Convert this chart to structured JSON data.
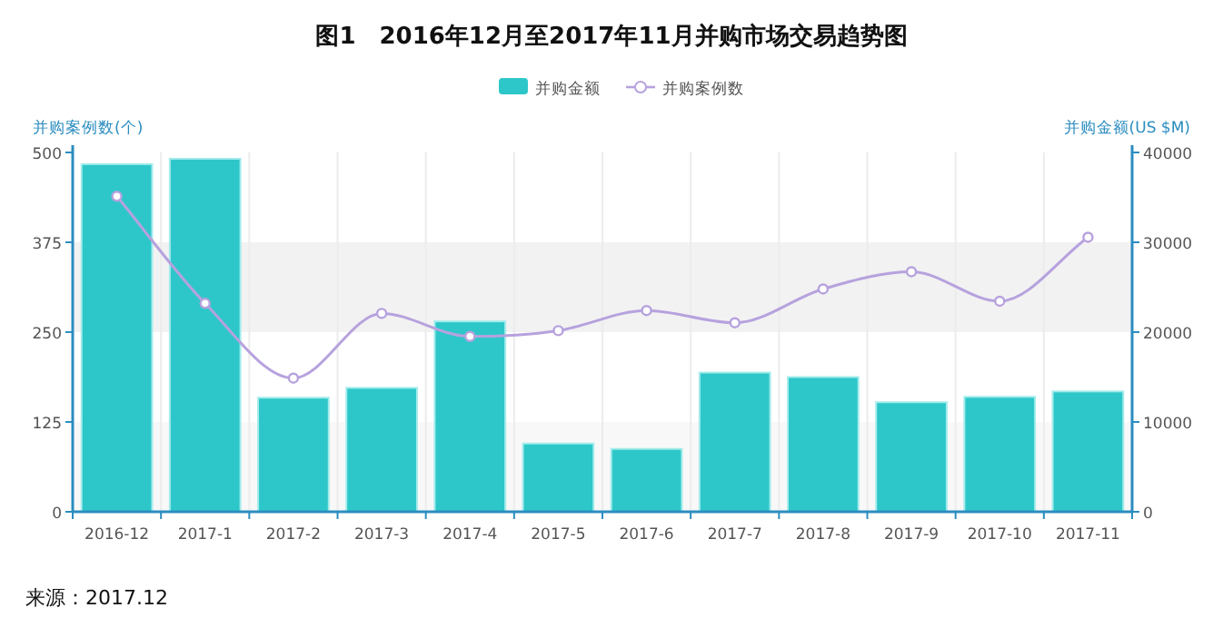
{
  "chart_data": {
    "type": "bar",
    "title": "图1　2016年12月至2017年11月并购市场交易趋势图",
    "ylabel": "并购案例数(个)",
    "y2label": "并购金额(US $M)",
    "categories": [
      "2016-12",
      "2017-1",
      "2017-2",
      "2017-3",
      "2017-4",
      "2017-5",
      "2017-6",
      "2017-7",
      "2017-8",
      "2017-9",
      "2017-10",
      "2017-11"
    ],
    "series": [
      {
        "name": "并购金额",
        "axis": "y2",
        "color": "#2ec7c9",
        "values": [
          38700,
          39300,
          12700,
          13800,
          21200,
          7600,
          7000,
          15500,
          15000,
          12200,
          12800,
          13400
        ]
      },
      {
        "name": "并购案例数",
        "type": "line",
        "axis": "y",
        "color": "#b6a2de",
        "marker": "circle",
        "values": [
          439,
          290,
          186,
          276,
          244,
          252,
          280,
          263,
          310,
          334,
          293,
          382
        ]
      }
    ],
    "ylim": [
      0,
      500
    ],
    "yticks": [
      0,
      125,
      250,
      375,
      500
    ],
    "y2lim": [
      0,
      40000
    ],
    "y2ticks": [
      0,
      10000,
      20000,
      30000,
      40000
    ],
    "bands": [
      {
        "axis": "y",
        "from": 0,
        "to": 125,
        "color": "#f8f8f8"
      },
      {
        "axis": "y",
        "from": 250,
        "to": 375,
        "color": "#f2f2f2"
      }
    ],
    "grid": "x",
    "legend": "top",
    "annotations": [
      "来源：2017.12"
    ]
  }
}
